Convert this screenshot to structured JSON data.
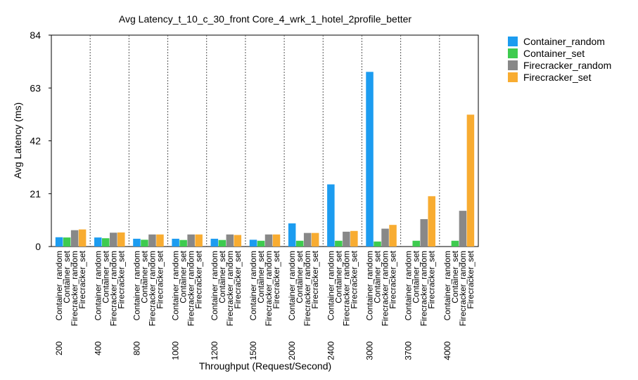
{
  "chart_data": {
    "type": "bar",
    "title": "Avg Latency_t_10_c_30_front Core_4_wrk_1_hotel_2profile_better",
    "xlabel": "Throughput (Request/Second)",
    "ylabel": "Avg Latency (ms)",
    "ylim": [
      0,
      84
    ],
    "yticks": [
      "0",
      "21",
      "42",
      "63",
      "84"
    ],
    "grid": false,
    "legend_position": "top-right, outside plot",
    "groups": [
      "200",
      "400",
      "800",
      "1000",
      "1200",
      "1500",
      "2000",
      "2400",
      "3000",
      "3700",
      "4000"
    ],
    "series": [
      {
        "name": "Container_random",
        "color": "#1c9cf0",
        "values": [
          3.7,
          3.6,
          3.1,
          3.1,
          3.1,
          2.7,
          9.2,
          24.7,
          69.4,
          null,
          null
        ]
      },
      {
        "name": "Container_set",
        "color": "#3ecb4f",
        "values": [
          3.6,
          3.3,
          2.7,
          2.6,
          2.6,
          2.3,
          2.3,
          2.3,
          2.0,
          2.3,
          2.3
        ]
      },
      {
        "name": "Firecracker_random",
        "color": "#888888",
        "values": [
          6.5,
          5.5,
          4.8,
          4.8,
          4.8,
          4.8,
          5.4,
          5.9,
          7.1,
          10.9,
          14.2
        ]
      },
      {
        "name": "Firecracker_set",
        "color": "#f8ac31",
        "values": [
          6.8,
          5.6,
          4.8,
          4.8,
          4.6,
          4.8,
          5.4,
          6.2,
          8.6,
          20.0,
          52.4
        ]
      }
    ]
  }
}
